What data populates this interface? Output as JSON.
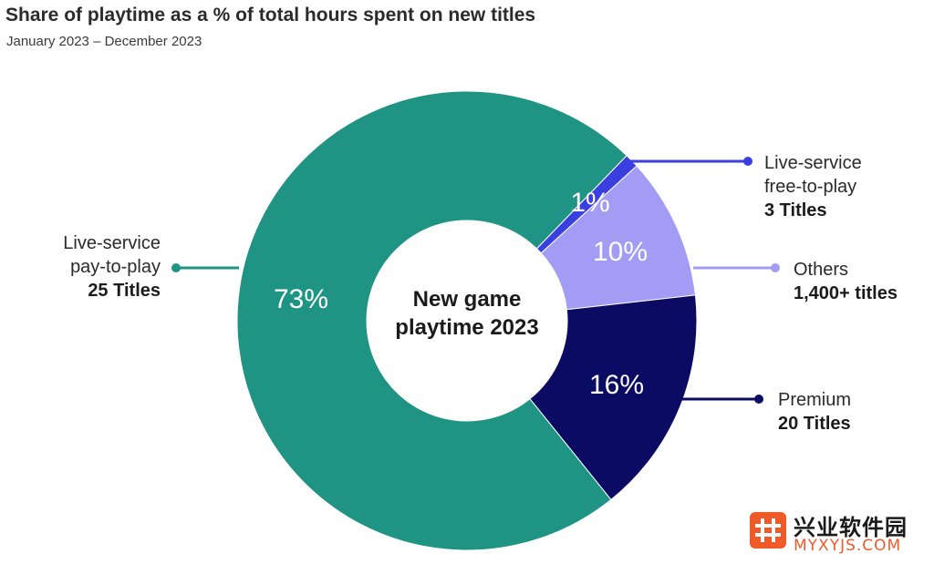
{
  "header": {
    "title": "Share of playtime as a % of total hours spent on new titles",
    "subtitle": "January 2023 – December 2023"
  },
  "chart_data": {
    "type": "pie",
    "variant": "donut",
    "title": "Share of playtime as a % of total hours spent on new titles",
    "subtitle": "January 2023 – December 2023",
    "center_label": [
      "New game",
      "playtime 2023"
    ],
    "unit": "%",
    "slices": [
      {
        "name": "Live-service free-to-play",
        "value": 1,
        "label": "1%",
        "color": "#3a3fe0",
        "legend": [
          "Live-service",
          "free-to-play"
        ],
        "count": "3 Titles"
      },
      {
        "name": "Others",
        "value": 10,
        "label": "10%",
        "color": "#a39cf4",
        "legend": [
          "Others"
        ],
        "count": "1,400+ titles"
      },
      {
        "name": "Premium",
        "value": 16,
        "label": "16%",
        "color": "#0b0b63",
        "legend": [
          "Premium"
        ],
        "count": "20 Titles"
      },
      {
        "name": "Live-service pay-to-play",
        "value": 73,
        "label": "73%",
        "color": "#1f9484",
        "legend": [
          "Live-service",
          "pay-to-play"
        ],
        "count": "25 Titles"
      }
    ]
  },
  "watermark": {
    "name": "兴业软件园",
    "domain": "MYXYJS.COM"
  }
}
